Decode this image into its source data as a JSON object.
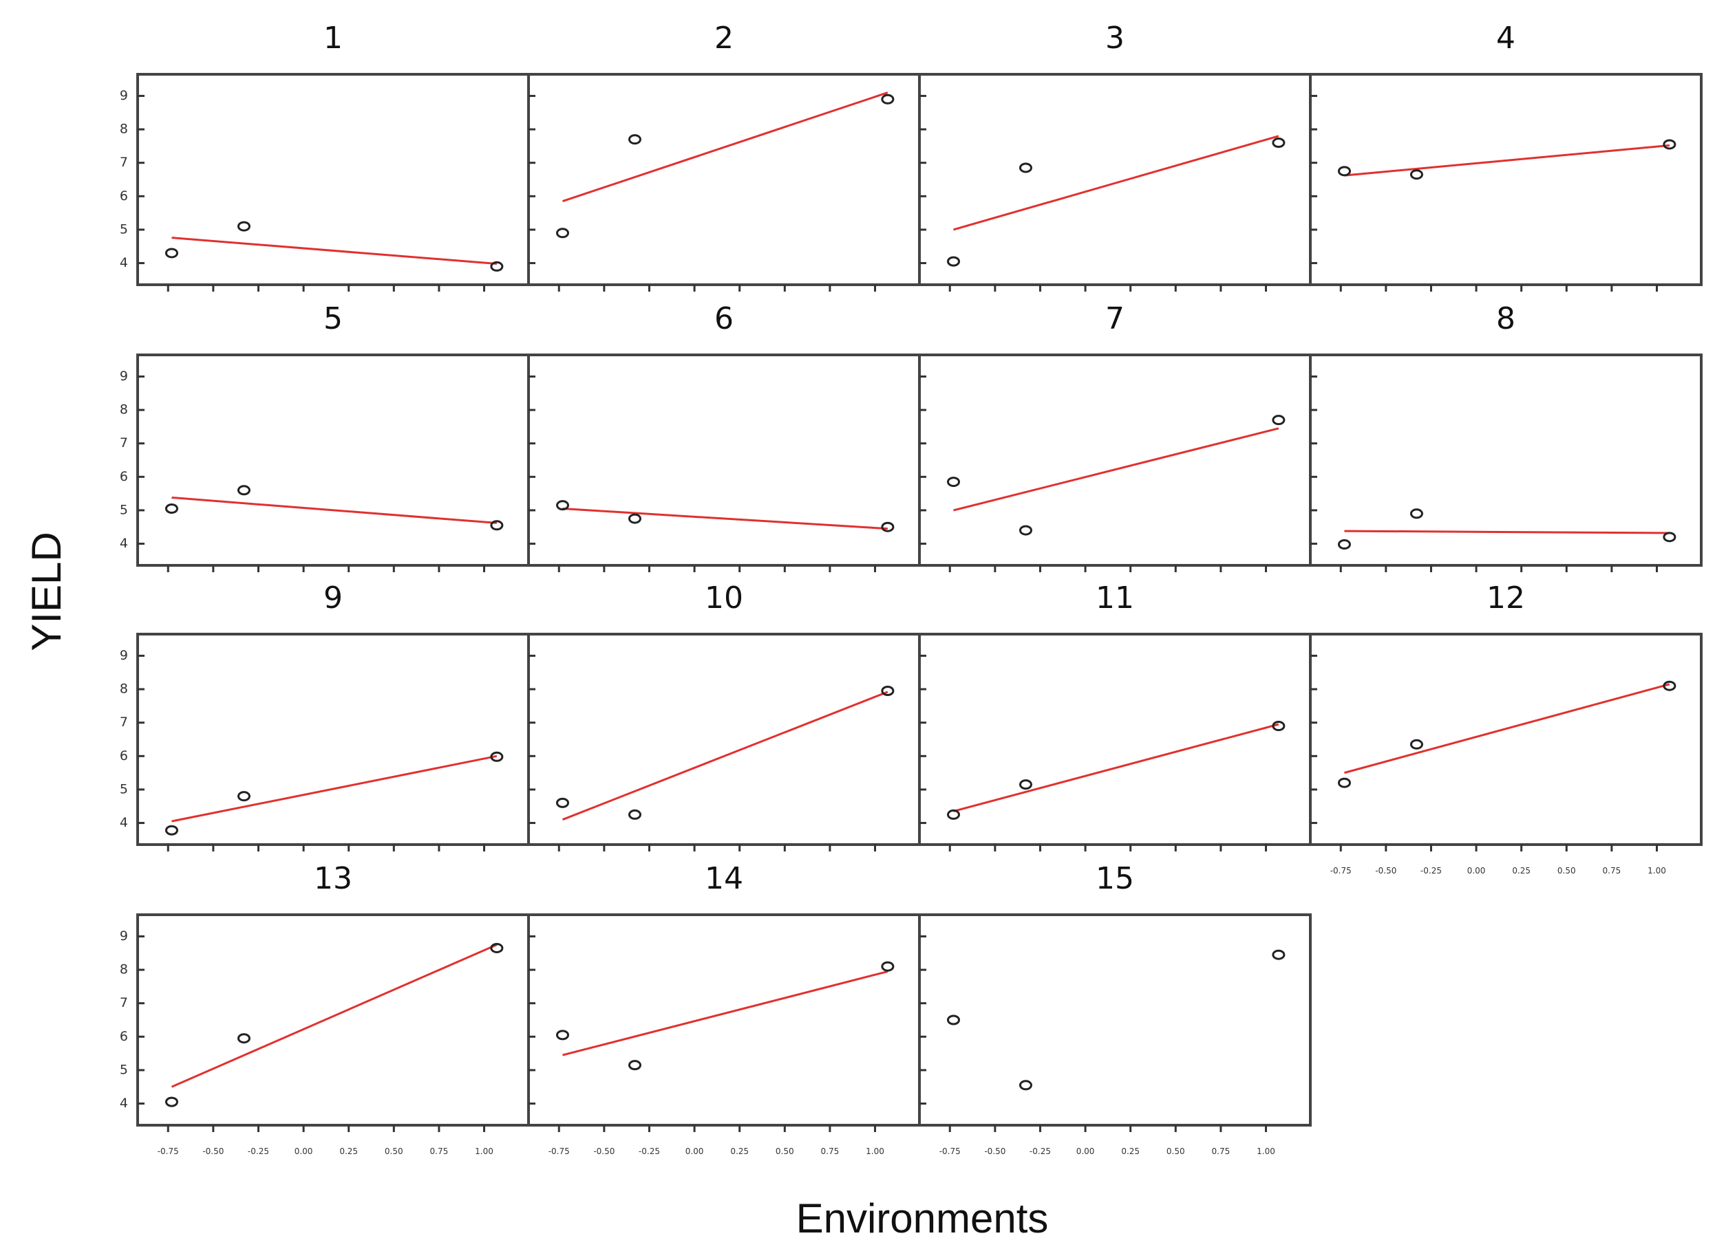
{
  "chart_data": {
    "type": "scatter",
    "xlabel": "Environments",
    "ylabel": "YIELD",
    "yticks": [
      4,
      5,
      6,
      7,
      8,
      9
    ],
    "ylim": [
      3.6,
      9.4
    ],
    "xticks": [
      -0.75,
      -0.5,
      -0.25,
      0.0,
      0.25,
      0.5,
      0.75,
      1.0
    ],
    "xtick_labels": [
      "-0.75",
      "-0.50",
      "-0.25",
      "0.00",
      "0.25",
      "0.50",
      "0.75",
      "1.00"
    ],
    "xlim": [
      -0.85,
      1.2
    ],
    "env_x": [
      -0.73,
      -0.33,
      1.07
    ],
    "panels": [
      {
        "title": "1",
        "y": [
          4.3,
          5.1,
          3.9
        ],
        "fit": [
          4.76,
          3.98
        ]
      },
      {
        "title": "2",
        "y": [
          4.9,
          7.7,
          8.9
        ],
        "fit": [
          5.85,
          9.1
        ]
      },
      {
        "title": "3",
        "y": [
          4.05,
          6.85,
          7.6
        ],
        "fit": [
          5.0,
          7.8
        ]
      },
      {
        "title": "4",
        "y": [
          6.75,
          6.65,
          7.55
        ],
        "fit": [
          6.62,
          7.52
        ]
      },
      {
        "title": "5",
        "y": [
          5.05,
          5.6,
          4.55
        ],
        "fit": [
          5.38,
          4.62
        ]
      },
      {
        "title": "6",
        "y": [
          5.15,
          4.75,
          4.5
        ],
        "fit": [
          5.05,
          4.45
        ]
      },
      {
        "title": "7",
        "y": [
          5.85,
          4.4,
          7.7
        ],
        "fit": [
          5.0,
          7.45
        ]
      },
      {
        "title": "8",
        "y": [
          3.98,
          4.9,
          4.2
        ],
        "fit": [
          4.38,
          4.32
        ]
      },
      {
        "title": "9",
        "y": [
          3.78,
          4.8,
          5.98
        ],
        "fit": [
          4.05,
          6.0
        ]
      },
      {
        "title": "10",
        "y": [
          4.6,
          4.25,
          7.95
        ],
        "fit": [
          4.1,
          7.92
        ]
      },
      {
        "title": "11",
        "y": [
          4.25,
          5.15,
          6.9
        ],
        "fit": [
          4.35,
          6.95
        ]
      },
      {
        "title": "12",
        "y": [
          5.2,
          6.35,
          8.1
        ],
        "fit": [
          5.5,
          8.15
        ]
      },
      {
        "title": "13",
        "y": [
          4.05,
          5.95,
          8.65
        ],
        "fit": [
          4.5,
          8.75
        ]
      },
      {
        "title": "14",
        "y": [
          6.05,
          5.15,
          8.1
        ],
        "fit": [
          5.45,
          7.95
        ]
      },
      {
        "title": "15",
        "y": [
          6.5,
          4.55,
          8.45
        ],
        "fit": null
      }
    ]
  }
}
